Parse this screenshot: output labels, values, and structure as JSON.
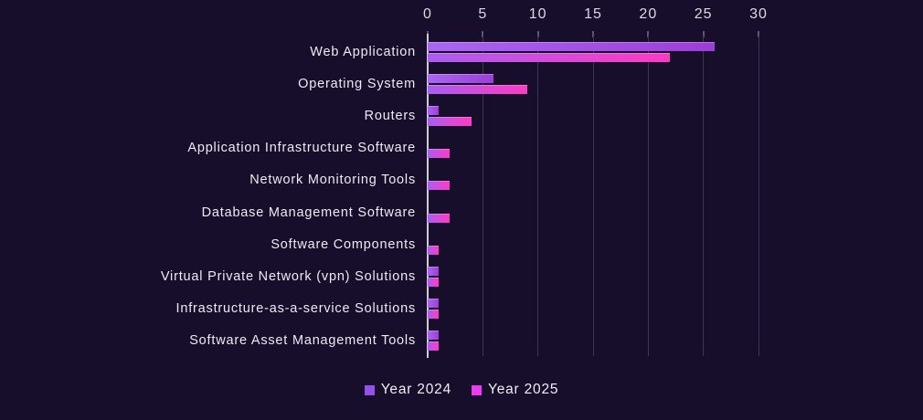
{
  "chart_data": {
    "type": "bar",
    "orientation": "horizontal",
    "title": "",
    "xlabel": "",
    "ylabel": "",
    "xlim": [
      0,
      30
    ],
    "ticks": [
      "0",
      "5",
      "10",
      "15",
      "20",
      "25",
      "30"
    ],
    "tick_values": [
      0,
      5,
      10,
      15,
      20,
      25,
      30
    ],
    "grid": true,
    "legend_position": "bottom",
    "categories": [
      "Web Application",
      "Operating System",
      "Routers",
      "Application Infrastructure Software",
      "Network Monitoring Tools",
      "Database Management Software",
      "Software Components",
      "Virtual Private Network (vpn) Solutions",
      "Infrastructure-as-a-service Solutions",
      "Software Asset Management Tools"
    ],
    "series": [
      {
        "name": "Year 2024",
        "values": [
          26,
          6,
          1,
          0,
          0,
          0,
          0,
          1,
          1,
          1
        ],
        "gradient_start": "#aa66f2",
        "gradient_end": "#9c3ed8",
        "legend_color": "#9350ec"
      },
      {
        "name": "Year 2025",
        "values": [
          22,
          9,
          4,
          2,
          2,
          2,
          1,
          1,
          1,
          1
        ],
        "gradient_start": "#a95ef0",
        "gradient_end": "#fe3ac4",
        "legend_color": "#e93cf0"
      }
    ],
    "colors": {
      "background": "#170e2c",
      "text": "#eceaf2",
      "axis_text": "#dcd9e4",
      "gridline": "#3d3554",
      "axis_line": "#cfccd8",
      "tick_mark": "#5d576f"
    }
  }
}
